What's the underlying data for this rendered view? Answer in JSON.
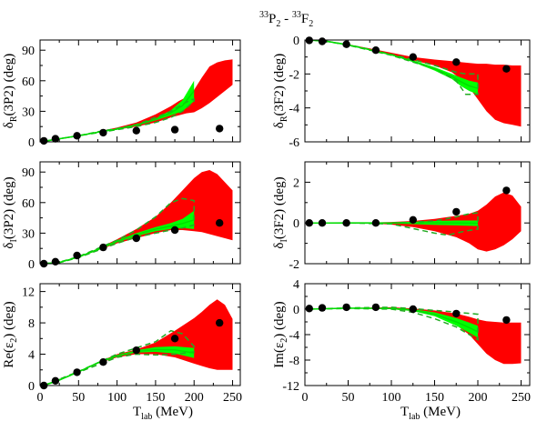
{
  "figure": {
    "title": {
      "pre1": "33",
      "base1": "P",
      "sub1": "2",
      "mid": " - ",
      "pre2": "33",
      "base2": "F",
      "sub2": "2"
    },
    "xlabel": {
      "main": "T",
      "sub": "lab",
      "unit": " (MeV)"
    }
  },
  "colors": {
    "red_band": "#ff0000",
    "green_band": "#00ff00",
    "green_dashed": "#22aa22",
    "green_line": "#00dd00",
    "points": "#000000",
    "axes": "#000000"
  },
  "chart_data": [
    {
      "id": "dR_3P2",
      "type": "line",
      "ylabel": {
        "prefix": "δ",
        "sub": "R",
        "rest": "(3P2) (deg)"
      },
      "xlim": [
        0,
        260
      ],
      "ylim": [
        0,
        100
      ],
      "xticks": [
        0,
        50,
        100,
        150,
        200,
        250
      ],
      "xtick_labels_shown": false,
      "yticks": [
        0,
        30,
        60,
        90
      ],
      "ytick_labels": [
        "0",
        "30",
        "60",
        "90"
      ],
      "series": [
        {
          "kind": "band",
          "color": "red",
          "x": [
            5,
            25,
            50,
            75,
            100,
            125,
            150,
            170,
            180,
            190,
            200,
            210,
            220,
            230,
            240,
            250
          ],
          "lower": [
            0.5,
            3,
            6,
            9,
            12,
            15,
            19,
            24,
            26,
            28,
            29,
            33,
            38,
            44,
            50,
            56
          ],
          "upper": [
            0.5,
            3,
            6,
            10,
            14,
            19,
            27,
            35,
            40,
            44,
            51,
            63,
            74,
            78,
            80,
            81
          ]
        },
        {
          "kind": "band",
          "color": "green",
          "x": [
            5,
            25,
            50,
            75,
            100,
            125,
            150,
            170,
            185,
            200
          ],
          "lower": [
            0.5,
            3,
            6,
            9,
            12,
            16,
            21,
            26,
            30,
            40
          ],
          "upper": [
            0.5,
            3,
            6,
            10,
            13,
            17,
            23,
            31,
            41,
            60
          ]
        },
        {
          "kind": "dashed",
          "color": "green",
          "x": [
            5,
            25,
            50,
            75,
            100,
            125,
            150,
            170,
            185,
            195,
            200,
            200,
            185,
            170,
            150,
            125,
            100,
            75,
            50,
            25,
            5
          ],
          "y": [
            0.5,
            3,
            6,
            10,
            13,
            17,
            24,
            30,
            37,
            41,
            42,
            40,
            30,
            24,
            19,
            15,
            12,
            9,
            6,
            3,
            0.5
          ]
        },
        {
          "kind": "points",
          "x": [
            5,
            20,
            48,
            82,
            125,
            175,
            233
          ],
          "y": [
            1,
            3,
            6,
            9,
            11,
            12,
            13
          ]
        }
      ]
    },
    {
      "id": "dR_3F2",
      "type": "line",
      "ylabel": {
        "prefix": "δ",
        "sub": "R",
        "rest": "(3F2) (deg)"
      },
      "xlim": [
        0,
        260
      ],
      "ylim": [
        -6,
        0
      ],
      "xticks": [
        0,
        50,
        100,
        150,
        200,
        250
      ],
      "xtick_labels_shown": false,
      "yticks": [
        0,
        -2,
        -4,
        -6
      ],
      "ytick_labels": [
        "0",
        "-2",
        "-4",
        "-6"
      ],
      "series": [
        {
          "kind": "band",
          "color": "red",
          "x": [
            5,
            25,
            50,
            75,
            100,
            125,
            150,
            170,
            180,
            190,
            200,
            210,
            220,
            230,
            240,
            250
          ],
          "lower": [
            0,
            -0.08,
            -0.3,
            -0.6,
            -0.9,
            -1.2,
            -1.5,
            -1.9,
            -2.3,
            -2.8,
            -3.5,
            -4.2,
            -4.7,
            -4.9,
            -5.0,
            -5.1
          ],
          "upper": [
            0,
            -0.06,
            -0.25,
            -0.5,
            -0.75,
            -1.0,
            -1.15,
            -1.25,
            -1.3,
            -1.35,
            -1.4,
            -1.4,
            -1.45,
            -1.45,
            -1.5,
            -1.5
          ]
        },
        {
          "kind": "band",
          "color": "green",
          "x": [
            5,
            25,
            50,
            75,
            100,
            125,
            150,
            170,
            180,
            190,
            200
          ],
          "lower": [
            0,
            -0.08,
            -0.3,
            -0.6,
            -0.9,
            -1.3,
            -1.8,
            -2.3,
            -2.7,
            -3.0,
            -3.2
          ],
          "upper": [
            0,
            -0.07,
            -0.28,
            -0.55,
            -0.85,
            -1.2,
            -1.6,
            -2.0,
            -2.2,
            -2.4,
            -2.5
          ]
        },
        {
          "kind": "dashed",
          "color": "green",
          "x": [
            5,
            25,
            50,
            75,
            100,
            125,
            150,
            175,
            186,
            200,
            200,
            186,
            175,
            150,
            125,
            100,
            75,
            50,
            25,
            5
          ],
          "y": [
            0,
            -0.07,
            -0.28,
            -0.55,
            -0.85,
            -1.15,
            -1.5,
            -1.9,
            -2.0,
            -2.0,
            -3.2,
            -3.2,
            -2.4,
            -1.7,
            -1.3,
            -0.9,
            -0.6,
            -0.3,
            -0.08,
            0
          ]
        },
        {
          "kind": "points",
          "x": [
            5,
            20,
            48,
            82,
            125,
            175,
            233
          ],
          "y": [
            -0.02,
            -0.08,
            -0.25,
            -0.6,
            -1.0,
            -1.3,
            -1.7
          ]
        }
      ]
    },
    {
      "id": "dI_3P2",
      "type": "line",
      "ylabel": {
        "prefix": "δ",
        "sub": "I",
        "rest": "(3P2) (deg)"
      },
      "xlim": [
        0,
        260
      ],
      "ylim": [
        0,
        100
      ],
      "xticks": [
        0,
        50,
        100,
        150,
        200,
        250
      ],
      "xtick_labels_shown": false,
      "yticks": [
        0,
        30,
        60,
        90
      ],
      "ytick_labels": [
        "0",
        "30",
        "60",
        "90"
      ],
      "series": [
        {
          "kind": "band",
          "color": "red",
          "x": [
            5,
            25,
            50,
            75,
            100,
            125,
            150,
            170,
            185,
            200,
            210,
            220,
            230,
            240,
            250
          ],
          "lower": [
            0,
            1,
            6,
            13,
            20,
            25,
            30,
            33,
            33,
            32,
            31,
            29,
            27,
            25,
            23
          ],
          "upper": [
            0,
            1.5,
            7,
            15,
            24,
            34,
            46,
            60,
            72,
            84,
            90,
            92,
            88,
            80,
            72
          ]
        },
        {
          "kind": "band",
          "color": "green",
          "x": [
            5,
            25,
            50,
            75,
            100,
            125,
            150,
            170,
            185,
            200
          ],
          "lower": [
            0,
            1,
            6,
            13,
            21,
            27,
            32,
            34,
            35,
            34
          ],
          "upper": [
            0,
            1.5,
            7,
            15,
            23,
            30,
            36,
            40,
            44,
            52
          ]
        },
        {
          "kind": "dashed",
          "color": "green",
          "x": [
            5,
            25,
            50,
            75,
            100,
            125,
            150,
            170,
            185,
            200,
            200,
            185,
            170,
            150,
            125,
            100,
            75,
            50,
            25,
            5
          ],
          "y": [
            0,
            1.5,
            7,
            15,
            23,
            33,
            46,
            60,
            64,
            62,
            38,
            35,
            33,
            30,
            26,
            20,
            13,
            6,
            1,
            0
          ]
        },
        {
          "kind": "points",
          "x": [
            5,
            20,
            48,
            82,
            125,
            175,
            233
          ],
          "y": [
            0,
            2,
            8,
            16,
            25,
            33,
            40
          ]
        }
      ]
    },
    {
      "id": "dI_3F2",
      "type": "line",
      "ylabel": {
        "prefix": "δ",
        "sub": "I",
        "rest": "(3F2) (deg)"
      },
      "xlim": [
        0,
        260
      ],
      "ylim": [
        -2,
        3
      ],
      "xticks": [
        0,
        50,
        100,
        150,
        200,
        250
      ],
      "xtick_labels_shown": false,
      "yticks": [
        2,
        0,
        -2
      ],
      "ytick_labels": [
        "2",
        "0",
        "-2"
      ],
      "series": [
        {
          "kind": "band",
          "color": "red",
          "x": [
            5,
            25,
            50,
            75,
            100,
            125,
            150,
            175,
            190,
            200,
            210,
            220,
            230,
            240,
            250
          ],
          "lower": [
            0,
            0,
            0,
            -0.02,
            -0.08,
            -0.2,
            -0.4,
            -0.7,
            -1.0,
            -1.3,
            -1.4,
            -1.3,
            -1.1,
            -0.8,
            -0.4
          ],
          "upper": [
            0,
            0,
            0.01,
            0.02,
            0.05,
            0.1,
            0.2,
            0.35,
            0.45,
            0.6,
            0.9,
            1.3,
            1.5,
            1.35,
            0.8
          ]
        },
        {
          "kind": "band",
          "color": "green",
          "x": [
            5,
            25,
            50,
            75,
            100,
            125,
            150,
            175,
            200
          ],
          "lower": [
            0,
            0,
            0,
            -0.01,
            -0.03,
            -0.06,
            -0.1,
            -0.12,
            -0.15
          ],
          "upper": [
            0,
            0,
            0.01,
            0.02,
            0.03,
            0.06,
            0.1,
            0.12,
            0.12
          ]
        },
        {
          "kind": "dashed",
          "color": "green",
          "x": [
            5,
            50,
            100,
            150,
            175,
            190,
            200,
            200,
            185,
            165,
            150,
            100,
            50,
            5
          ],
          "y": [
            0,
            0,
            0,
            0.1,
            0.3,
            0.45,
            0.5,
            -0.3,
            -0.4,
            -0.6,
            -0.5,
            -0.05,
            0,
            0
          ]
        },
        {
          "kind": "points",
          "x": [
            5,
            20,
            48,
            82,
            125,
            175,
            233
          ],
          "y": [
            0,
            0,
            0,
            0,
            0.15,
            0.55,
            1.6
          ]
        }
      ]
    },
    {
      "id": "Re_eps2",
      "type": "line",
      "ylabel": {
        "prefix": "Re(ε",
        "sub": "2",
        "rest": ") (deg)"
      },
      "xlim": [
        0,
        260
      ],
      "ylim": [
        0,
        13
      ],
      "xticks": [
        0,
        50,
        100,
        150,
        200,
        250
      ],
      "xtick_labels": [
        "0",
        "50",
        "100",
        "150",
        "200",
        "250"
      ],
      "yticks": [
        0,
        4,
        8,
        12
      ],
      "ytick_labels": [
        "0",
        "4",
        "8",
        "12"
      ],
      "series": [
        {
          "kind": "band",
          "color": "red",
          "x": [
            5,
            25,
            50,
            75,
            100,
            125,
            150,
            175,
            200,
            210,
            220,
            230,
            240,
            250
          ],
          "lower": [
            0,
            0.7,
            1.7,
            2.8,
            3.6,
            4.0,
            4.0,
            3.6,
            2.8,
            2.5,
            2.2,
            2.0,
            2.0,
            2.0
          ],
          "upper": [
            0,
            0.7,
            1.8,
            3.0,
            4.0,
            4.6,
            5.5,
            7.0,
            8.6,
            9.4,
            10.3,
            11.0,
            10.3,
            8.5
          ]
        },
        {
          "kind": "band",
          "color": "green",
          "x": [
            5,
            25,
            50,
            75,
            100,
            125,
            150,
            175,
            200
          ],
          "lower": [
            0,
            0.7,
            1.7,
            2.8,
            3.7,
            4.2,
            4.3,
            4.1,
            3.5
          ],
          "upper": [
            0,
            0.7,
            1.8,
            3.0,
            3.9,
            4.5,
            4.9,
            5.0,
            4.8
          ]
        },
        {
          "kind": "dashed",
          "color": "green",
          "x": [
            5,
            50,
            100,
            150,
            170,
            185,
            200,
            200,
            175,
            150,
            125,
            100,
            50,
            5
          ],
          "y": [
            0,
            1.8,
            4.0,
            5.6,
            7.0,
            6.6,
            5.0,
            4.3,
            4.0,
            3.9,
            4.0,
            3.6,
            1.7,
            0
          ]
        },
        {
          "kind": "points",
          "x": [
            5,
            20,
            48,
            82,
            125,
            175,
            233
          ],
          "y": [
            0,
            0.6,
            1.7,
            3.0,
            4.5,
            6.0,
            8.0
          ]
        }
      ]
    },
    {
      "id": "Im_eps2",
      "type": "line",
      "ylabel": {
        "prefix": "Im(ε",
        "sub": "2",
        "rest": ") (deg)"
      },
      "xlim": [
        0,
        260
      ],
      "ylim": [
        -12,
        4
      ],
      "xticks": [
        0,
        50,
        100,
        150,
        200,
        250
      ],
      "xtick_labels": [
        "0",
        "50",
        "100",
        "150",
        "200",
        "250"
      ],
      "yticks": [
        4,
        0,
        -4,
        -8,
        -12
      ],
      "ytick_labels": [
        "4",
        "0",
        "-4",
        "-8",
        "-12"
      ],
      "series": [
        {
          "kind": "band",
          "color": "red",
          "x": [
            5,
            50,
            100,
            125,
            150,
            175,
            190,
            200,
            210,
            220,
            230,
            240,
            250
          ],
          "lower": [
            0,
            0.1,
            0,
            -0.3,
            -1.0,
            -2.5,
            -4.0,
            -5.5,
            -7.0,
            -8.0,
            -8.6,
            -8.6,
            -8.5
          ],
          "upper": [
            0,
            0.2,
            0.3,
            0.1,
            -0.2,
            -0.7,
            -1.2,
            -1.6,
            -1.9,
            -2.0,
            -2.1,
            -2.1,
            -2.1
          ]
        },
        {
          "kind": "band",
          "color": "green",
          "x": [
            5,
            50,
            100,
            125,
            150,
            175,
            190,
            200
          ],
          "lower": [
            0,
            0.1,
            0,
            -0.3,
            -1.1,
            -2.6,
            -3.7,
            -4.5
          ],
          "upper": [
            0,
            0.2,
            0.2,
            0,
            -0.5,
            -1.4,
            -2.1,
            -2.6
          ]
        },
        {
          "kind": "dashed",
          "color": "green",
          "x": [
            5,
            50,
            100,
            125,
            150,
            170,
            185,
            200,
            200,
            175,
            150,
            125,
            100,
            50,
            5
          ],
          "y": [
            0,
            0.2,
            0.3,
            0.1,
            -0.2,
            -0.4,
            -0.6,
            -0.8,
            -4.8,
            -2.8,
            -1.5,
            -0.5,
            0,
            0.1,
            0
          ]
        },
        {
          "kind": "points",
          "x": [
            5,
            20,
            48,
            82,
            125,
            175,
            233
          ],
          "y": [
            0.1,
            0.2,
            0.3,
            0.3,
            0,
            -0.7,
            -1.7
          ]
        }
      ]
    }
  ]
}
